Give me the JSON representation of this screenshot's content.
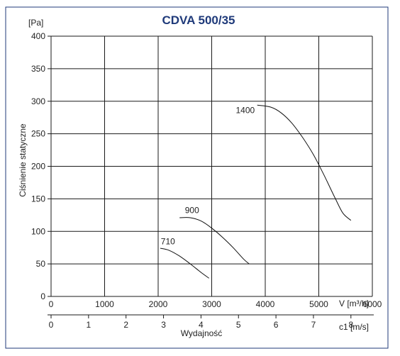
{
  "chart_data": {
    "type": "line",
    "title": "CDVA 500/35",
    "ylabel": "Ciśnienie statyczne",
    "y_unit": "[Pa]",
    "x_unit": "V [m³/h]",
    "x2_unit": "c1 [m/s]",
    "xlabel": "Wydajność",
    "xlim": [
      0,
      6000
    ],
    "ylim": [
      0,
      400
    ],
    "x_ticks": [
      "0",
      "1000",
      "2000",
      "3000",
      "4000",
      "5000",
      "6000"
    ],
    "y_ticks": [
      "0",
      "50",
      "100",
      "150",
      "200",
      "250",
      "300",
      "350",
      "400"
    ],
    "x2_ticks": [
      {
        "label": "0",
        "x": 0
      },
      {
        "label": "1",
        "x": 700
      },
      {
        "label": "2",
        "x": 1400
      },
      {
        "label": "3",
        "x": 2100
      },
      {
        "label": "4",
        "x": 2800
      },
      {
        "label": "5",
        "x": 3500
      },
      {
        "label": "6",
        "x": 4200
      },
      {
        "label": "7",
        "x": 4900
      },
      {
        "label": "8",
        "x": 5600
      }
    ],
    "grid": true,
    "series": [
      {
        "name": "710",
        "label_at": {
          "x": 2050,
          "y": 80
        },
        "points": [
          [
            2040,
            74
          ],
          [
            2200,
            71
          ],
          [
            2400,
            62
          ],
          [
            2600,
            50
          ],
          [
            2800,
            37
          ],
          [
            2950,
            28
          ]
        ]
      },
      {
        "name": "900",
        "label_at": {
          "x": 2500,
          "y": 128
        },
        "points": [
          [
            2400,
            121
          ],
          [
            2600,
            121
          ],
          [
            2800,
            116
          ],
          [
            3000,
            105
          ],
          [
            3200,
            91
          ],
          [
            3400,
            75
          ],
          [
            3600,
            57
          ],
          [
            3700,
            50
          ]
        ]
      },
      {
        "name": "1400",
        "label_at": {
          "x": 3450,
          "y": 282
        },
        "points": [
          [
            3850,
            294
          ],
          [
            4100,
            291
          ],
          [
            4300,
            282
          ],
          [
            4500,
            266
          ],
          [
            4700,
            244
          ],
          [
            4900,
            218
          ],
          [
            5100,
            186
          ],
          [
            5300,
            152
          ],
          [
            5450,
            128
          ],
          [
            5600,
            117
          ]
        ]
      }
    ]
  }
}
